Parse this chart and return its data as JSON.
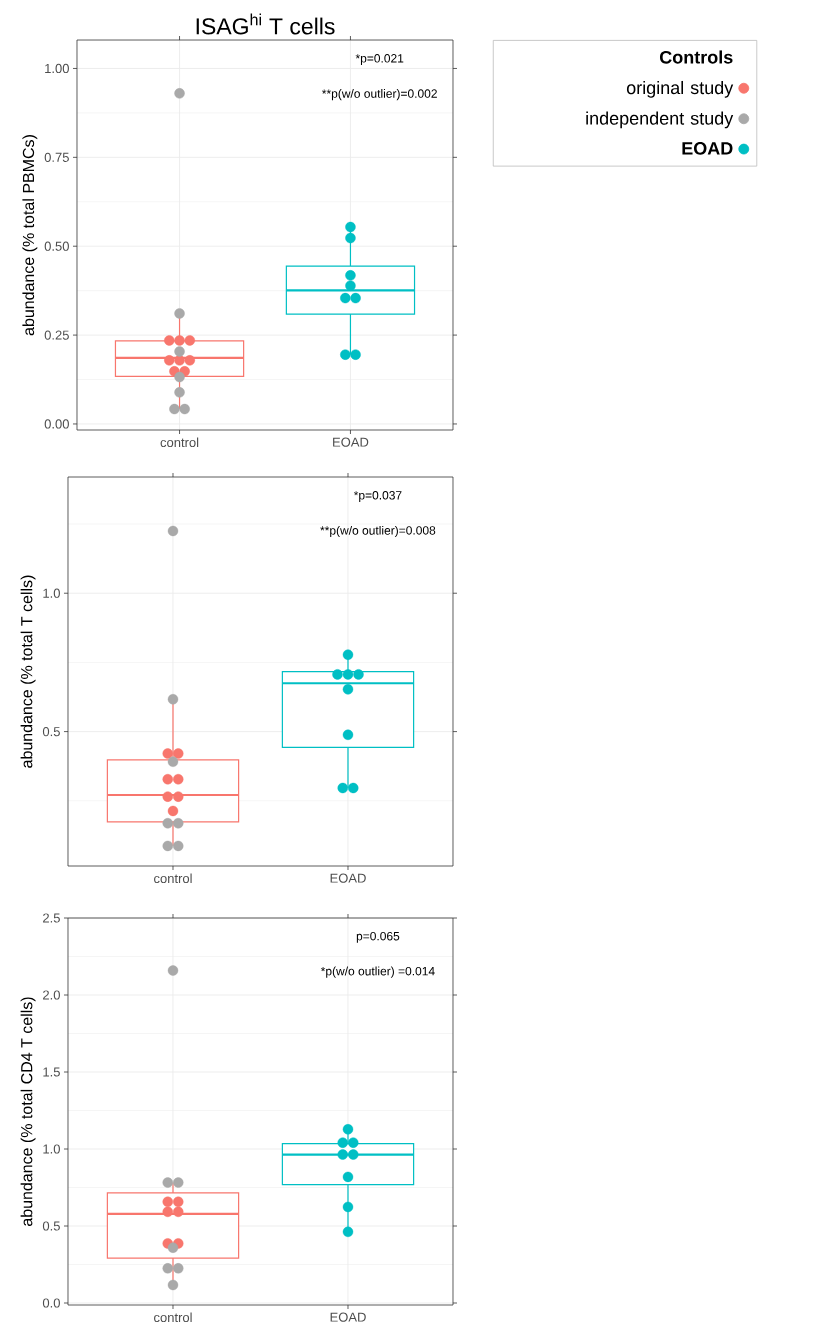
{
  "chart_data": [
    {
      "type": "box",
      "title": "ISAG$^{hi}$ T cells",
      "ylabel": "abundance (% total PBMCs)",
      "categories": [
        "control",
        "EOAD"
      ],
      "colors": [
        "#f8766d",
        "#00bfc4"
      ],
      "boxes": [
        {
          "low": 0.042,
          "q1": 0.134,
          "median": 0.186,
          "q3": 0.234,
          "high": 0.311
        },
        {
          "low": 0.195,
          "q1": 0.309,
          "median": 0.376,
          "q3": 0.444,
          "high": 0.554
        }
      ],
      "series": [
        {
          "name": "original study",
          "type": "scatter",
          "color": "#f8766d",
          "x": [
            "control",
            "control",
            "control",
            "control",
            "control",
            "control",
            "control",
            "control"
          ],
          "values": [
            0.235,
            0.235,
            0.235,
            0.179,
            0.179,
            0.179,
            0.148,
            0.148
          ]
        },
        {
          "name": "independent study",
          "type": "scatter",
          "color": "#a9a9a9",
          "x": [
            "control",
            "control",
            "control",
            "control",
            "control",
            "control",
            "control"
          ],
          "values": [
            0.93,
            0.311,
            0.204,
            0.132,
            0.089,
            0.042,
            0.042
          ]
        },
        {
          "name": "EOAD",
          "type": "scatter",
          "color": "#00bfc4",
          "x": [
            "EOAD",
            "EOAD",
            "EOAD",
            "EOAD",
            "EOAD",
            "EOAD",
            "EOAD",
            "EOAD"
          ],
          "values": [
            0.554,
            0.523,
            0.418,
            0.389,
            0.354,
            0.354,
            0.195,
            0.195
          ]
        }
      ],
      "ylim": [
        -0.017,
        1.08
      ],
      "yticks": [
        {
          "value": 0,
          "label": "0.00"
        },
        {
          "value": 0.25,
          "label": "0.25"
        },
        {
          "value": 0.5,
          "label": "0.50"
        },
        {
          "value": 0.75,
          "label": "0.75"
        },
        {
          "value": 1,
          "label": "1.00"
        }
      ],
      "grid": true,
      "marker": "circle",
      "legend": "right",
      "legend_title": "Controls",
      "annotations": [
        "*p=0.021",
        "**p(w/o outlier)=0.002"
      ]
    },
    {
      "type": "box",
      "ylabel": "abundance (% total T cells)",
      "categories": [
        "control",
        "EOAD"
      ],
      "colors": [
        "#f8766d",
        "#00bfc4"
      ],
      "boxes": [
        {
          "low": 0.282,
          "q1": 0.318,
          "median": 0.364,
          "q3": 0.434,
          "high": 0.588
        },
        {
          "low": 0.377,
          "q1": 0.462,
          "median": 0.637,
          "q3": 0.675,
          "high": 0.735
        }
      ],
      "series": [
        {
          "type": "scatter",
          "color": "#f8766d",
          "x": [
            "control",
            "control",
            "control",
            "control",
            "control",
            "control",
            "control"
          ],
          "values": [
            0.448,
            0.448,
            0.394,
            0.394,
            0.361,
            0.361,
            0.336
          ]
        },
        {
          "type": "scatter",
          "color": "#a9a9a9",
          "x": [
            "control",
            "control",
            "control",
            "control",
            "control",
            "control",
            "control"
          ],
          "values": [
            1.366,
            0.588,
            0.43,
            0.316,
            0.316,
            0.282,
            0.282
          ]
        },
        {
          "type": "scatter",
          "color": "#00bfc4",
          "x": [
            "EOAD",
            "EOAD",
            "EOAD",
            "EOAD",
            "EOAD",
            "EOAD",
            "EOAD",
            "EOAD"
          ],
          "values": [
            0.735,
            0.666,
            0.666,
            0.666,
            0.618,
            0.492,
            0.377,
            0.377
          ]
        }
      ],
      "ylim": [
        0.255,
        1.79
      ],
      "yticks": [
        0.5,
        {
          "value": 1,
          "label": "1.0"
        }
      ],
      "log": true,
      "grid": true,
      "marker": "circle",
      "annotations": [
        "*p=0.037",
        "**p(w/o outlier)=0.008"
      ]
    },
    {
      "type": "box",
      "ylabel": "abundance (% total CD4 T cells)",
      "categories": [
        "control",
        "EOAD"
      ],
      "colors": [
        "#f8766d",
        "#00bfc4"
      ],
      "boxes": [
        {
          "low": 0.117,
          "q1": 0.292,
          "median": 0.579,
          "q3": 0.715,
          "high": 0.782
        },
        {
          "low": 0.462,
          "q1": 0.769,
          "median": 0.964,
          "q3": 1.035,
          "high": 1.128
        }
      ],
      "series": [
        {
          "type": "scatter",
          "color": "#f8766d",
          "x": [
            "control",
            "control",
            "control",
            "control",
            "control",
            "control"
          ],
          "values": [
            0.657,
            0.657,
            0.592,
            0.592,
            0.387,
            0.387
          ]
        },
        {
          "type": "scatter",
          "color": "#a9a9a9",
          "x": [
            "control",
            "control",
            "control",
            "control",
            "control",
            "control",
            "control"
          ],
          "values": [
            2.159,
            0.782,
            0.782,
            0.359,
            0.225,
            0.225,
            0.117
          ]
        },
        {
          "type": "scatter",
          "color": "#00bfc4",
          "x": [
            "EOAD",
            "EOAD",
            "EOAD",
            "EOAD",
            "EOAD",
            "EOAD",
            "EOAD",
            "EOAD"
          ],
          "values": [
            1.128,
            1.041,
            1.041,
            0.964,
            0.964,
            0.819,
            0.624,
            0.462
          ]
        }
      ],
      "ylim": [
        -0.013,
        2.5
      ],
      "yticks": [
        {
          "value": 0,
          "label": "0.0"
        },
        0.5,
        {
          "value": 1,
          "label": "1.0"
        },
        1.5,
        {
          "value": 2,
          "label": "2.0"
        },
        2.5
      ],
      "grid": true,
      "marker": "circle",
      "annotations": [
        "p=0.065",
        "*p(w/o outlier) =0.014"
      ]
    }
  ]
}
